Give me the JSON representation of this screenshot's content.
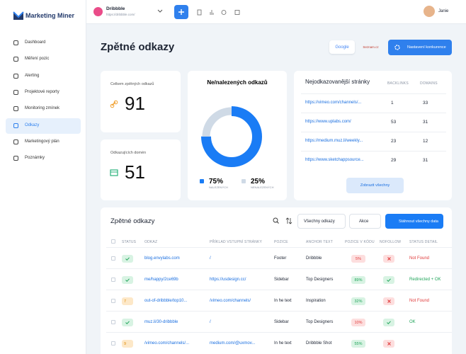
{
  "sidebar": {
    "logo": "Marketing Miner",
    "nav": [
      "Dashboard",
      "Měření pozic",
      "Alerting",
      "Projektové reporty",
      "Monitoring zmínek",
      "Odkazy",
      "Marketingový plán",
      "Poznámky"
    ]
  },
  "topbar": {
    "project": "Dribbble",
    "url": "https://dribbble.com/",
    "user": "Janie"
  },
  "header": {
    "title": "Zpětné odkazy",
    "engines": [
      "Google",
      "Seznam.cz"
    ],
    "button": "Nastavení konkurence"
  },
  "stats": [
    {
      "label": "Celkem zpětných odkazů",
      "value": 91
    },
    {
      "label": "Odkazujících domén",
      "value": 51
    }
  ],
  "donut": {
    "title": "Ne/nalezených odkazů",
    "segments": [
      {
        "value": 75,
        "label": "75%",
        "name": "NALEZENÝCH"
      },
      {
        "value": 25,
        "label": "25%",
        "name": "NENALEZENÝCH"
      }
    ]
  },
  "top_pages": {
    "title": "Nejodkazovanější stránky",
    "columns": [
      "BACKLINKS",
      "DOMAINS"
    ],
    "rows": [
      {
        "url": "https://vimeo.com/channels/...",
        "backlinks": 1,
        "domains": 33
      },
      {
        "url": "https://www.uplabs.com/",
        "backlinks": 53,
        "domains": 31
      },
      {
        "url": "https://medium.muz.li/weekly...",
        "backlinks": 23,
        "domains": 12
      },
      {
        "url": "https://www.sketchappsource...",
        "backlinks": 29,
        "domains": 31
      }
    ],
    "button": "Zobrazit všechny"
  },
  "table": {
    "title": "Zpětné odkazy",
    "filter": "Všechny odkazy",
    "actions": "Akce",
    "download": "Stáhnout všechny data",
    "columns": [
      "STATUS",
      "ODKAZ",
      "PŘÍKLAD VSTUPNÍ STRÁNKY",
      "POZICE",
      "ANCHOR TEXT",
      "POZICE V KÓDU",
      "NOFOLLOW",
      "STATUS DETAIL"
    ],
    "rows": [
      {
        "link": "blog.envylabs.com",
        "page": "/",
        "position": "Footer",
        "anchor": "Dribbble",
        "code": {
          "value": 5,
          "label": "5%"
        },
        "nofollow": false,
        "detail": "Not Found"
      },
      {
        "link": "me/happy/2ce69b",
        "page": "https://usdesign.cc/",
        "position": "Sidebar",
        "anchor": "Top Designers",
        "code": {
          "value": 89,
          "label": "89%"
        },
        "nofollow": true,
        "detail": "Redirected + OK"
      },
      {
        "count": 7,
        "link": "out-of-dribbble/top10...",
        "page": "/vimeo.com/channels/",
        "position": "In he text",
        "anchor": "Inspiration",
        "code": {
          "value": 32,
          "label": "32%"
        },
        "nofollow": false,
        "detail": "Not Found"
      },
      {
        "link": "muz.li/30-dribbble",
        "page": "/",
        "position": "Sidebar",
        "anchor": "Top Designers",
        "code": {
          "value": 10,
          "label": "10%"
        },
        "nofollow": true,
        "detail": "OK"
      },
      {
        "count": 9,
        "link": "/vimeo.com/channels/...",
        "page": "medium.com/@uxmov...",
        "position": "In he text",
        "anchor": "Dribbble Shot",
        "code": {
          "value": 55,
          "label": "55%"
        },
        "nofollow": false
      }
    ]
  }
}
